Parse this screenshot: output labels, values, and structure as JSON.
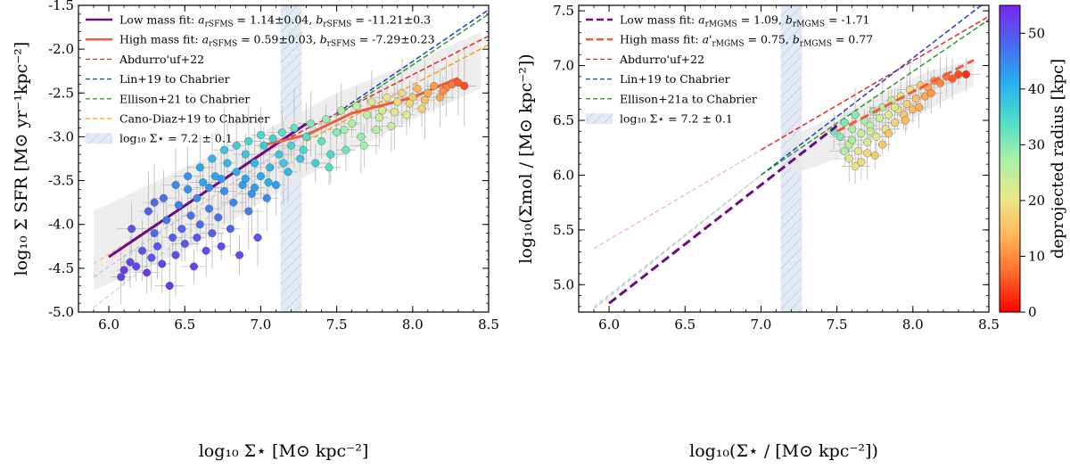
{
  "chart_data": [
    {
      "type": "scatter",
      "title": "",
      "xlabel": "log₁₀ Σ⋆ [M⊙ kpc⁻²]",
      "ylabel": "log₁₀ Σ SFR [M⊙ yr⁻¹kpc⁻²]",
      "xlim": [
        5.8,
        8.5
      ],
      "ylim": [
        -5.0,
        -1.5
      ],
      "xticks": [
        "6.0",
        "6.5",
        "7.0",
        "7.5",
        "8.0",
        "8.5"
      ],
      "yticks": [
        "-5.0",
        "-4.5",
        "-4.0",
        "-3.5",
        "-3.0",
        "-2.5",
        "-2.0",
        "-1.5"
      ],
      "legend_position": "top-left",
      "band": {
        "x": [
          7.13,
          7.27
        ],
        "label": "log₁₀ Σ⋆ = 7.2 ± 0.1"
      },
      "envelope": {
        "x": [
          5.9,
          6.5,
          7.0,
          7.5,
          8.0,
          8.45
        ],
        "lower": [
          -4.75,
          -4.3,
          -3.75,
          -3.25,
          -2.8,
          -2.45
        ],
        "upper": [
          -3.85,
          -3.35,
          -2.95,
          -2.5,
          -2.15,
          -1.8
        ]
      },
      "lines": [
        {
          "name": "Low mass fit: a_rSFMS = 1.14±0.04, b_rSFMS = -11.21±0.3",
          "legend_main": "Low mass fit: ",
          "a_sub": "rSFMS",
          "a_val": " = 1.14±0.04, ",
          "b_sub": "rSFMS",
          "b_val": " = -11.21±0.3",
          "color": "#6a0d83",
          "style": "solid",
          "width": 3,
          "x": [
            6.0,
            7.3
          ],
          "y": [
            -4.37,
            -2.85
          ]
        },
        {
          "name": "High mass fit: a_rSFMS = 0.59±0.03, b_rSFMS = -7.29±0.23",
          "legend_main": "High mass fit: ",
          "a_sub": "rSFMS",
          "a_val": " = 0.59±0.03, ",
          "b_sub": "rSFMS",
          "b_val": " = -7.29±0.23",
          "color": "#f15b3a",
          "style": "solid",
          "width": 3,
          "x": [
            7.0,
            7.3,
            7.6,
            8.0,
            8.3
          ],
          "y": [
            -3.1,
            -2.98,
            -2.73,
            -2.55,
            -2.33
          ]
        },
        {
          "name": "Abdurro'uf+22",
          "color": "#e8292a",
          "style": "dashed",
          "width": 1.5,
          "x": [
            7.2,
            8.5
          ],
          "y": [
            -3.0,
            -1.85
          ]
        },
        {
          "name": "Lin+19 to Chabrier",
          "color": "#1f3ec9",
          "style": "dashed",
          "width": 1.5,
          "x": [
            7.5,
            8.5
          ],
          "y": [
            -2.73,
            -1.55
          ]
        },
        {
          "name": "Ellison+21 to Chabrier",
          "color": "#2a9c2a",
          "style": "dashed",
          "width": 1.5,
          "x": [
            7.5,
            8.5
          ],
          "y": [
            -2.76,
            -1.6
          ]
        },
        {
          "name": "Cano-Diaz+19 to Chabrier",
          "color": "#f0a020",
          "style": "dashed",
          "width": 1.5,
          "x": [
            7.3,
            8.5
          ],
          "y": [
            -3.05,
            -1.95
          ]
        }
      ],
      "faint_lines": [
        {
          "color": "#f6b8b8",
          "x": [
            5.9,
            7.2
          ],
          "y": [
            -4.45,
            -3.0
          ]
        },
        {
          "color": "#b9c4ee",
          "x": [
            5.9,
            7.5
          ],
          "y": [
            -4.6,
            -2.73
          ]
        },
        {
          "color": "#c0e0c0",
          "x": [
            5.9,
            7.5
          ],
          "y": [
            -4.95,
            -2.76
          ]
        },
        {
          "color": "#f7dfb0",
          "x": [
            5.9,
            7.3
          ],
          "y": [
            -4.52,
            -3.05
          ]
        }
      ],
      "points": [
        [
          6.08,
          -4.6,
          52
        ],
        [
          6.1,
          -4.52,
          53
        ],
        [
          6.14,
          -4.43,
          51
        ],
        [
          6.18,
          -4.48,
          52
        ],
        [
          6.22,
          -4.3,
          50
        ],
        [
          6.25,
          -4.55,
          53
        ],
        [
          6.28,
          -4.38,
          50
        ],
        [
          6.3,
          -4.1,
          48
        ],
        [
          6.32,
          -4.25,
          50
        ],
        [
          6.35,
          -4.45,
          52
        ],
        [
          6.38,
          -3.95,
          47
        ],
        [
          6.4,
          -4.7,
          53
        ],
        [
          6.42,
          -4.15,
          49
        ],
        [
          6.44,
          -4.35,
          51
        ],
        [
          6.46,
          -3.78,
          46
        ],
        [
          6.48,
          -4.05,
          49
        ],
        [
          6.5,
          -4.22,
          50
        ],
        [
          6.52,
          -3.6,
          44
        ],
        [
          6.54,
          -3.9,
          47
        ],
        [
          6.56,
          -4.48,
          52
        ],
        [
          6.58,
          -3.7,
          45
        ],
        [
          6.6,
          -4.0,
          48
        ],
        [
          6.62,
          -3.52,
          42
        ],
        [
          6.64,
          -4.3,
          51
        ],
        [
          6.66,
          -3.82,
          46
        ],
        [
          6.68,
          -4.1,
          49
        ],
        [
          6.7,
          -3.45,
          42
        ],
        [
          6.72,
          -3.92,
          47
        ],
        [
          6.74,
          -4.25,
          51
        ],
        [
          6.76,
          -3.62,
          44
        ],
        [
          6.78,
          -3.3,
          40
        ],
        [
          6.8,
          -4.05,
          49
        ],
        [
          6.82,
          -3.75,
          45
        ],
        [
          6.84,
          -3.4,
          41
        ],
        [
          6.86,
          -4.35,
          51
        ],
        [
          6.88,
          -3.55,
          43
        ],
        [
          6.9,
          -3.2,
          38
        ],
        [
          6.92,
          -3.85,
          46
        ],
        [
          6.94,
          -3.65,
          44
        ],
        [
          6.96,
          -3.3,
          40
        ],
        [
          6.98,
          -4.15,
          50
        ],
        [
          7.0,
          -3.45,
          42
        ],
        [
          7.02,
          -3.1,
          37
        ],
        [
          7.04,
          -3.7,
          45
        ],
        [
          7.06,
          -3.35,
          40
        ],
        [
          7.08,
          -3.02,
          36
        ],
        [
          7.1,
          -3.55,
          43
        ],
        [
          7.12,
          -3.2,
          38
        ],
        [
          7.14,
          -2.95,
          34
        ],
        [
          7.18,
          -3.4,
          40
        ],
        [
          7.2,
          -3.1,
          36
        ],
        [
          7.22,
          -2.9,
          33
        ],
        [
          7.26,
          -3.25,
          38
        ],
        [
          7.3,
          -3.0,
          34
        ],
        [
          7.33,
          -2.85,
          31
        ],
        [
          7.36,
          -3.3,
          37
        ],
        [
          7.4,
          -3.05,
          33
        ],
        [
          7.43,
          -2.8,
          29
        ],
        [
          7.46,
          -3.2,
          35
        ],
        [
          7.5,
          -2.95,
          30
        ],
        [
          7.53,
          -2.7,
          27
        ],
        [
          7.56,
          -3.15,
          32
        ],
        [
          7.6,
          -2.85,
          27
        ],
        [
          7.63,
          -2.65,
          25
        ],
        [
          7.66,
          -3.0,
          29
        ],
        [
          7.7,
          -2.75,
          25
        ],
        [
          7.73,
          -2.6,
          23
        ],
        [
          7.76,
          -2.92,
          26
        ],
        [
          7.8,
          -2.7,
          22
        ],
        [
          7.83,
          -2.55,
          20
        ],
        [
          7.86,
          -2.88,
          24
        ],
        [
          7.9,
          -2.6,
          19
        ],
        [
          7.93,
          -2.5,
          18
        ],
        [
          7.96,
          -2.75,
          21
        ],
        [
          8.0,
          -2.55,
          16
        ],
        [
          8.03,
          -2.45,
          14
        ],
        [
          8.06,
          -2.68,
          17
        ],
        [
          8.1,
          -2.5,
          13
        ],
        [
          8.14,
          -2.42,
          11
        ],
        [
          8.18,
          -2.55,
          12
        ],
        [
          8.22,
          -2.44,
          9
        ],
        [
          8.26,
          -2.4,
          8
        ],
        [
          8.3,
          -2.38,
          6
        ],
        [
          8.34,
          -2.42,
          5
        ],
        [
          6.15,
          -4.05,
          51
        ],
        [
          6.26,
          -3.85,
          49
        ],
        [
          6.36,
          -3.7,
          47
        ],
        [
          6.44,
          -3.55,
          45
        ],
        [
          6.52,
          -3.45,
          44
        ],
        [
          6.6,
          -3.35,
          42
        ],
        [
          6.68,
          -3.25,
          40
        ],
        [
          6.76,
          -3.15,
          38
        ],
        [
          6.84,
          -3.1,
          37
        ],
        [
          6.92,
          -3.05,
          36
        ],
        [
          7.0,
          -2.98,
          35
        ],
        [
          6.3,
          -3.75,
          48
        ],
        [
          6.58,
          -4.15,
          50
        ],
        [
          6.66,
          -3.58,
          44
        ],
        [
          6.74,
          -3.48,
          43
        ],
        [
          6.9,
          -3.48,
          42
        ],
        [
          6.96,
          -3.58,
          43
        ],
        [
          7.05,
          -3.52,
          41
        ],
        [
          7.15,
          -3.3,
          38
        ],
        [
          7.28,
          -3.15,
          35
        ],
        [
          7.45,
          -3.35,
          34
        ],
        [
          7.55,
          -2.92,
          28
        ],
        [
          7.68,
          -3.1,
          28
        ],
        [
          7.78,
          -2.78,
          23
        ],
        [
          7.88,
          -2.72,
          21
        ],
        [
          7.98,
          -2.62,
          18
        ],
        [
          8.08,
          -2.58,
          15
        ],
        [
          8.2,
          -2.48,
          10
        ]
      ]
    },
    {
      "type": "scatter",
      "title": "",
      "xlabel": "log₁₀(Σ⋆ / [M⊙ kpc⁻²])",
      "ylabel": "log₁₀(Σmol / [M⊙ kpc⁻²])",
      "xlim": [
        5.8,
        8.5
      ],
      "ylim": [
        4.75,
        7.55
      ],
      "xticks": [
        "6.0",
        "6.5",
        "7.0",
        "7.5",
        "8.0",
        "8.5"
      ],
      "yticks": [
        "5.0",
        "5.5",
        "6.0",
        "6.5",
        "7.0",
        "7.5"
      ],
      "legend_position": "top-left",
      "band": {
        "x": [
          7.13,
          7.27
        ],
        "label": "log₁₀ Σ⋆ = 7.2 ± 0.1"
      },
      "envelope": {
        "x": [
          7.2,
          7.5,
          7.8,
          8.1,
          8.4
        ],
        "lower": [
          6.0,
          6.15,
          6.35,
          6.6,
          6.82
        ],
        "upper": [
          6.35,
          6.55,
          6.75,
          6.95,
          7.05
        ]
      },
      "lines": [
        {
          "name": "Low mass fit: a_rMGMS = 1.09, b_rMGMS = -1.71",
          "legend_main": "Low mass fit: ",
          "a_sub": "rMGMS",
          "a_val": " = 1.09, ",
          "b_sub": "rMGMS",
          "b_val": " = -1.71",
          "color": "#6a0d83",
          "style": "dashed",
          "width": 3,
          "x": [
            6.0,
            7.5
          ],
          "y": [
            4.83,
            6.45
          ]
        },
        {
          "name": "High mass fit: a'_rMGMS = 0.75, b_rMGMS = 0.77",
          "legend_main": "High mass fit: ",
          "a_sub": "rMGMS",
          "a_val": " = 0.75, ",
          "b_sub": "rMGMS",
          "b_val": " = 0.77",
          "color": "#f15b3a",
          "style": "dashed",
          "width": 3,
          "x": [
            7.5,
            8.4
          ],
          "y": [
            6.4,
            7.05
          ]
        },
        {
          "name": "Abdurro'uf+22",
          "color": "#e8292a",
          "style": "dashed",
          "width": 1.5,
          "x": [
            7.0,
            8.5
          ],
          "y": [
            6.23,
            7.45
          ]
        },
        {
          "name": "Lin+19 to Chabrier",
          "color": "#1f3ec9",
          "style": "dashed",
          "width": 1.5,
          "x": [
            7.0,
            8.45
          ],
          "y": [
            6.0,
            7.55
          ]
        },
        {
          "name": "Ellison+21a to Chabrier",
          "color": "#2a9c2a",
          "style": "dashed",
          "width": 1.5,
          "x": [
            7.0,
            8.5
          ],
          "y": [
            6.0,
            7.42
          ]
        }
      ],
      "faint_lines": [
        {
          "color": "#f6b8b8",
          "x": [
            5.9,
            7.0
          ],
          "y": [
            5.33,
            6.23
          ]
        },
        {
          "color": "#b9c4ee",
          "x": [
            5.9,
            7.0
          ],
          "y": [
            4.78,
            6.0
          ]
        },
        {
          "color": "#c0e0c0",
          "x": [
            5.9,
            7.0
          ],
          "y": [
            4.8,
            6.0
          ]
        }
      ],
      "points": [
        [
          7.48,
          6.4,
          32
        ],
        [
          7.52,
          6.35,
          30
        ],
        [
          7.55,
          6.48,
          31
        ],
        [
          7.58,
          6.28,
          24
        ],
        [
          7.6,
          6.42,
          27
        ],
        [
          7.62,
          6.55,
          30
        ],
        [
          7.64,
          6.22,
          20
        ],
        [
          7.66,
          6.38,
          25
        ],
        [
          7.68,
          6.5,
          28
        ],
        [
          7.7,
          6.3,
          22
        ],
        [
          7.72,
          6.45,
          25
        ],
        [
          7.74,
          6.58,
          28
        ],
        [
          7.76,
          6.35,
          21
        ],
        [
          7.78,
          6.52,
          24
        ],
        [
          7.8,
          6.62,
          26
        ],
        [
          7.82,
          6.42,
          20
        ],
        [
          7.84,
          6.55,
          22
        ],
        [
          7.86,
          6.68,
          24
        ],
        [
          7.88,
          6.48,
          18
        ],
        [
          7.9,
          6.6,
          20
        ],
        [
          7.92,
          6.72,
          22
        ],
        [
          7.94,
          6.55,
          16
        ],
        [
          7.96,
          6.65,
          17
        ],
        [
          7.98,
          6.78,
          19
        ],
        [
          8.0,
          6.6,
          14
        ],
        [
          8.02,
          6.7,
          15
        ],
        [
          8.05,
          6.82,
          16
        ],
        [
          8.08,
          6.72,
          12
        ],
        [
          8.1,
          6.8,
          12
        ],
        [
          8.14,
          6.86,
          10
        ],
        [
          8.18,
          6.84,
          9
        ],
        [
          8.22,
          6.9,
          8
        ],
        [
          8.26,
          6.88,
          6
        ],
        [
          8.3,
          6.92,
          5
        ],
        [
          8.35,
          6.92,
          3
        ],
        [
          7.58,
          6.15,
          22
        ],
        [
          7.62,
          6.08,
          20
        ],
        [
          7.66,
          6.12,
          19
        ],
        [
          7.7,
          6.2,
          18
        ],
        [
          7.75,
          6.18,
          17
        ],
        [
          7.8,
          6.28,
          16
        ],
        [
          7.55,
          6.22,
          26
        ],
        [
          7.6,
          6.32,
          28
        ],
        [
          7.72,
          6.4,
          24
        ],
        [
          7.84,
          6.38,
          15
        ],
        [
          7.88,
          6.62,
          22
        ],
        [
          7.95,
          6.5,
          14
        ],
        [
          8.04,
          6.62,
          13
        ],
        [
          8.12,
          6.75,
          11
        ]
      ]
    }
  ],
  "colorbar": {
    "label": "deprojected radius [kpc]",
    "min": 0,
    "max": 55,
    "ticks": [
      "0",
      "10",
      "20",
      "30",
      "40",
      "50"
    ],
    "stops": [
      "#ff0000",
      "#ff6a2d",
      "#ffb85a",
      "#e8e88a",
      "#a6f0a8",
      "#4fdcc8",
      "#27aef0",
      "#4a68f0",
      "#7a26ee"
    ]
  }
}
